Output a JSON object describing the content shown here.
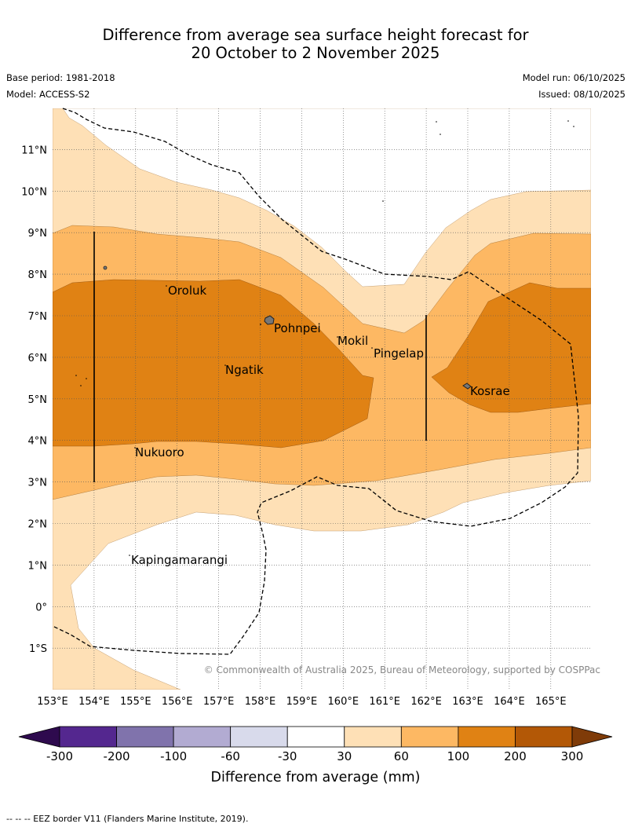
{
  "header": {
    "title_line1": "Difference from average sea surface height forecast for",
    "title_line2": "20 October to 2 November 2025",
    "base_period": "Base period: 1981-2018",
    "model": "Model: ACCESS-S2",
    "model_run": "Model run: 06/10/2025",
    "issued": "Issued: 08/10/2025"
  },
  "map": {
    "lon_labels": [
      "153°E",
      "154°E",
      "155°E",
      "156°E",
      "157°E",
      "158°E",
      "159°E",
      "160°E",
      "161°E",
      "162°E",
      "163°E",
      "164°E",
      "165°E"
    ],
    "lat_labels": [
      "11°N",
      "10°N",
      "9°N",
      "8°N",
      "7°N",
      "6°N",
      "5°N",
      "4°N",
      "3°N",
      "2°N",
      "1°N",
      "0°",
      "1°S"
    ],
    "places": [
      "Oroluk",
      "Pohnpei",
      "Mokil",
      "Pingelap",
      "Ngatik",
      "Kosrae",
      "Nukuoro",
      "Kapingamarangi"
    ],
    "copyright": "© Commonwealth of Australia 2025, Bureau of Meteorology, supported by COSPPac"
  },
  "legend": {
    "ticks": [
      "-300",
      "-200",
      "-100",
      "-60",
      "-30",
      "30",
      "60",
      "100",
      "200",
      "300"
    ],
    "title": "Difference from average (mm)",
    "colors": {
      "below_min": "#2e0a4e",
      "bins": [
        "#54278f",
        "#8073ac",
        "#b2abd2",
        "#d8daeb",
        "#ffffff",
        "#fee0b6",
        "#fdb863",
        "#e08214",
        "#b35806"
      ],
      "above_max": "#7f3b08"
    }
  },
  "footer": {
    "eez_note": "--  --  -- EEZ border V11 (Flanders Marine Institute, 2019)."
  }
}
